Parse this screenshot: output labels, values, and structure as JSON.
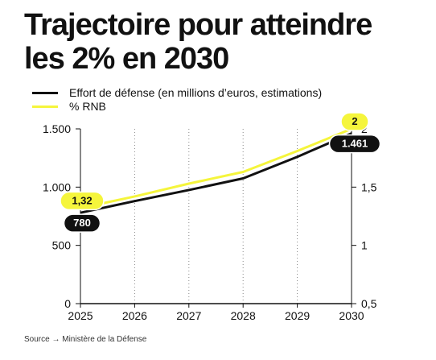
{
  "title_lines": [
    "Trajectoire pour atteindre",
    "les 2% en 2030"
  ],
  "source": "Source → Ministère de la Défense",
  "colors": {
    "effort": "#111111",
    "rnb": "#f5f53c",
    "grid": "#888888"
  },
  "chart_data": {
    "type": "line",
    "x": [
      2025,
      2026,
      2027,
      2028,
      2029,
      2030
    ],
    "series": [
      {
        "name": "Effort de défense (en millions d’euros, estimations)",
        "axis": "left",
        "values": [
          780,
          880,
          975,
          1075,
          1260,
          1461
        ]
      },
      {
        "name": "% RNB",
        "axis": "right",
        "values": [
          1.32,
          1.42,
          1.53,
          1.63,
          1.81,
          2.0
        ]
      }
    ],
    "y_left": {
      "range": [
        0,
        1500
      ],
      "ticks": [
        0,
        500,
        1000,
        1500
      ],
      "tick_labels": [
        "0",
        "500",
        "1.000",
        "1.500"
      ]
    },
    "y_right": {
      "range": [
        0.5,
        2
      ],
      "ticks": [
        0.5,
        1,
        1.5,
        2
      ],
      "tick_labels": [
        "0,5",
        "1",
        "1,5",
        "2"
      ]
    },
    "x_tick_labels": [
      "2025",
      "2026",
      "2027",
      "2028",
      "2029",
      "2030"
    ],
    "annotations": [
      {
        "series": 0,
        "index": 0,
        "text": "780"
      },
      {
        "series": 0,
        "index": 5,
        "text": "1.461"
      },
      {
        "series": 1,
        "index": 0,
        "text": "1,32"
      },
      {
        "series": 1,
        "index": 5,
        "text": "2"
      }
    ],
    "grid": "dotted-vertical"
  }
}
